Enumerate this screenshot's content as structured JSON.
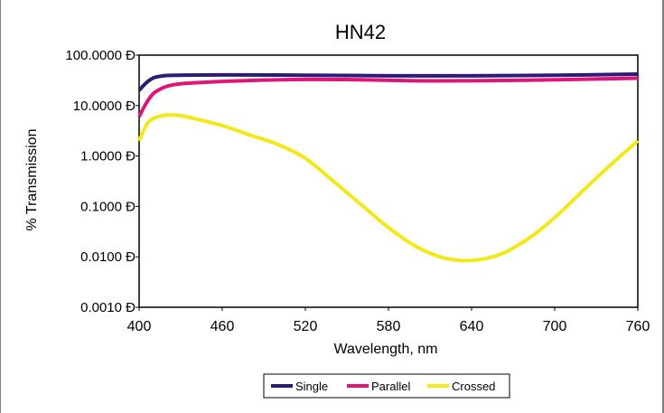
{
  "chart_data": {
    "type": "line",
    "title": "HN42",
    "xlabel": "Wavelength, nm",
    "ylabel": "% Transmission",
    "yscale": "log",
    "xlim": [
      400,
      760
    ],
    "ylim": [
      0.001,
      100
    ],
    "x_ticks": [
      400,
      460,
      520,
      580,
      640,
      700,
      760
    ],
    "x_tick_labels": [
      "400",
      "460",
      "520",
      "580",
      "640",
      "700",
      "760"
    ],
    "y_ticks": [
      100,
      10,
      1,
      0.1,
      0.01,
      0.001
    ],
    "y_tick_labels": [
      "100.0000 Đ",
      "10.0000 Đ",
      "1.0000 Đ",
      "0.1000 Đ",
      "0.0100 Đ",
      "0.0010 Đ"
    ],
    "grid": false,
    "legend_position": "bottom",
    "series": [
      {
        "name": "Single",
        "color": "#2e1a78",
        "x": [
          400,
          405,
          410,
          415,
          420,
          430,
          460,
          520,
          580,
          640,
          700,
          760
        ],
        "y": [
          20,
          28,
          35,
          38,
          39.5,
          40,
          40.5,
          40,
          39,
          39,
          40,
          42
        ]
      },
      {
        "name": "Parallel",
        "color": "#e0157a",
        "x": [
          400,
          405,
          410,
          415,
          420,
          430,
          460,
          490,
          520,
          560,
          600,
          640,
          700,
          760
        ],
        "y": [
          6,
          11,
          17,
          21,
          24,
          27,
          30,
          32,
          33,
          32.5,
          31,
          31,
          32.5,
          35
        ]
      },
      {
        "name": "Crossed",
        "color": "#f2e81a",
        "x": [
          400,
          405,
          410,
          420,
          430,
          440,
          460,
          480,
          500,
          520,
          540,
          560,
          580,
          600,
          620,
          640,
          660,
          680,
          700,
          720,
          740,
          760
        ],
        "y": [
          2,
          4,
          5.5,
          6.5,
          6.3,
          5.5,
          4,
          2.6,
          1.7,
          0.9,
          0.32,
          0.11,
          0.038,
          0.016,
          0.0095,
          0.0085,
          0.011,
          0.022,
          0.06,
          0.2,
          0.65,
          2
        ]
      }
    ]
  }
}
